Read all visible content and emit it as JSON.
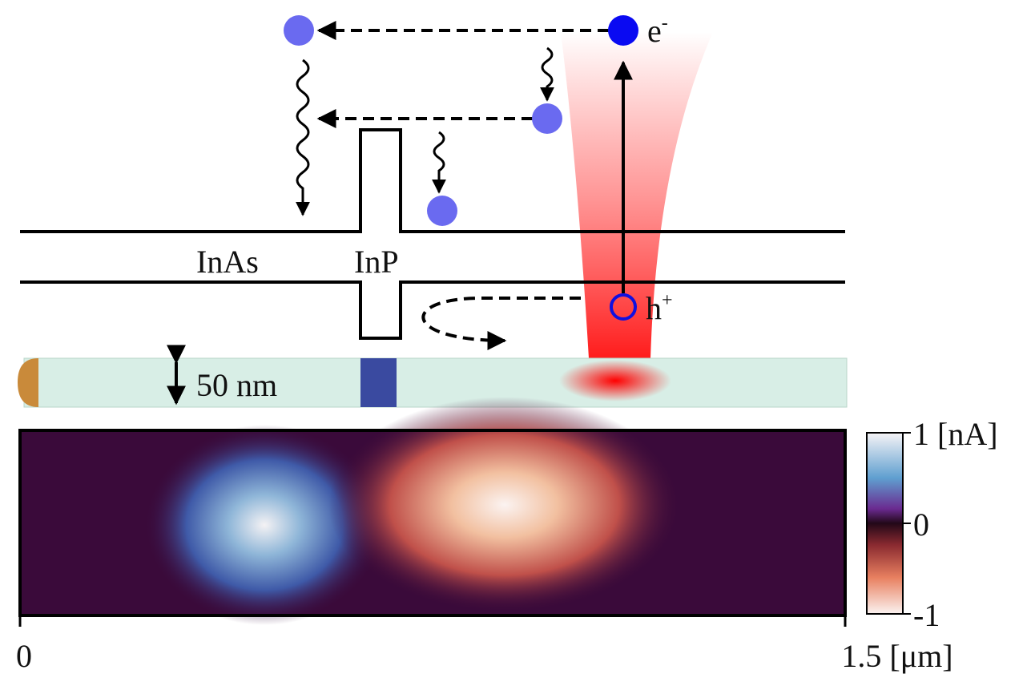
{
  "labels": {
    "electron": {
      "symbol": "e",
      "sup": "-"
    },
    "hole": {
      "symbol": "h",
      "sup": "+"
    },
    "inas": "InAs",
    "inp": "InP",
    "diameter": "50 nm"
  },
  "colorbar": {
    "ticks": [
      "1 [nA]",
      "0",
      "-1"
    ]
  },
  "x_axis": {
    "start": "0",
    "end": "1.5 [μm]"
  }
}
